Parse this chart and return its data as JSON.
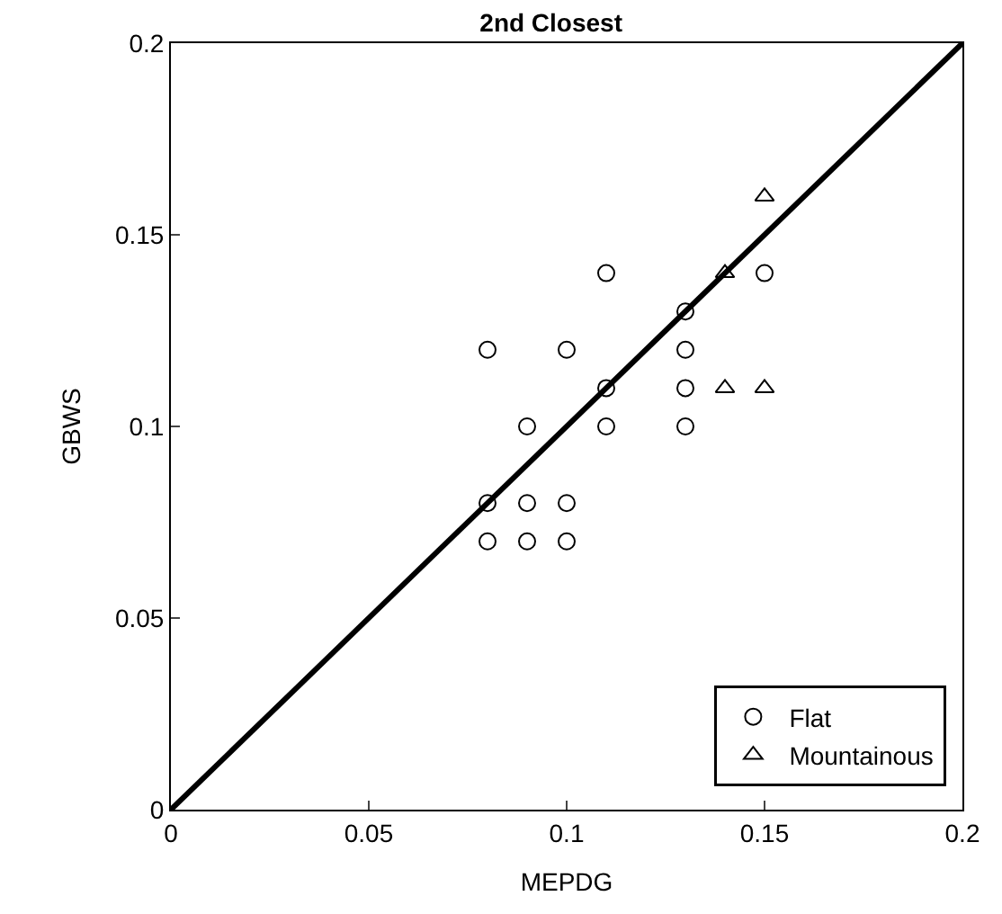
{
  "chart_data": {
    "type": "scatter",
    "title": "2nd Closest",
    "xlabel": "MEPDG",
    "ylabel": "GBWS",
    "xlim": [
      0,
      0.2
    ],
    "ylim": [
      0,
      0.2
    ],
    "xticks": [
      0,
      0.05,
      0.1,
      0.15,
      0.2
    ],
    "yticks": [
      0,
      0.05,
      0.1,
      0.15,
      0.2
    ],
    "legend": "bottom right",
    "series": [
      {
        "name": "Flat",
        "color": "#000000",
        "marker": "circle",
        "x": [
          0.08,
          0.08,
          0.08,
          0.09,
          0.09,
          0.09,
          0.1,
          0.1,
          0.1,
          0.11,
          0.11,
          0.11,
          0.13,
          0.13,
          0.13,
          0.13,
          0.15
        ],
        "values": [
          0.12,
          0.08,
          0.07,
          0.1,
          0.08,
          0.07,
          0.12,
          0.08,
          0.07,
          0.14,
          0.11,
          0.1,
          0.13,
          0.12,
          0.11,
          0.1,
          0.14
        ]
      },
      {
        "name": "Mountainous",
        "color": "#000000",
        "marker": "triangle",
        "x": [
          0.14,
          0.14,
          0.15,
          0.15
        ],
        "values": [
          0.14,
          0.11,
          0.11,
          0.16
        ]
      },
      {
        "type": "line",
        "color": "#000000",
        "marker": "none",
        "x": [
          0,
          0.2
        ],
        "values": [
          0,
          0.2
        ]
      }
    ]
  }
}
